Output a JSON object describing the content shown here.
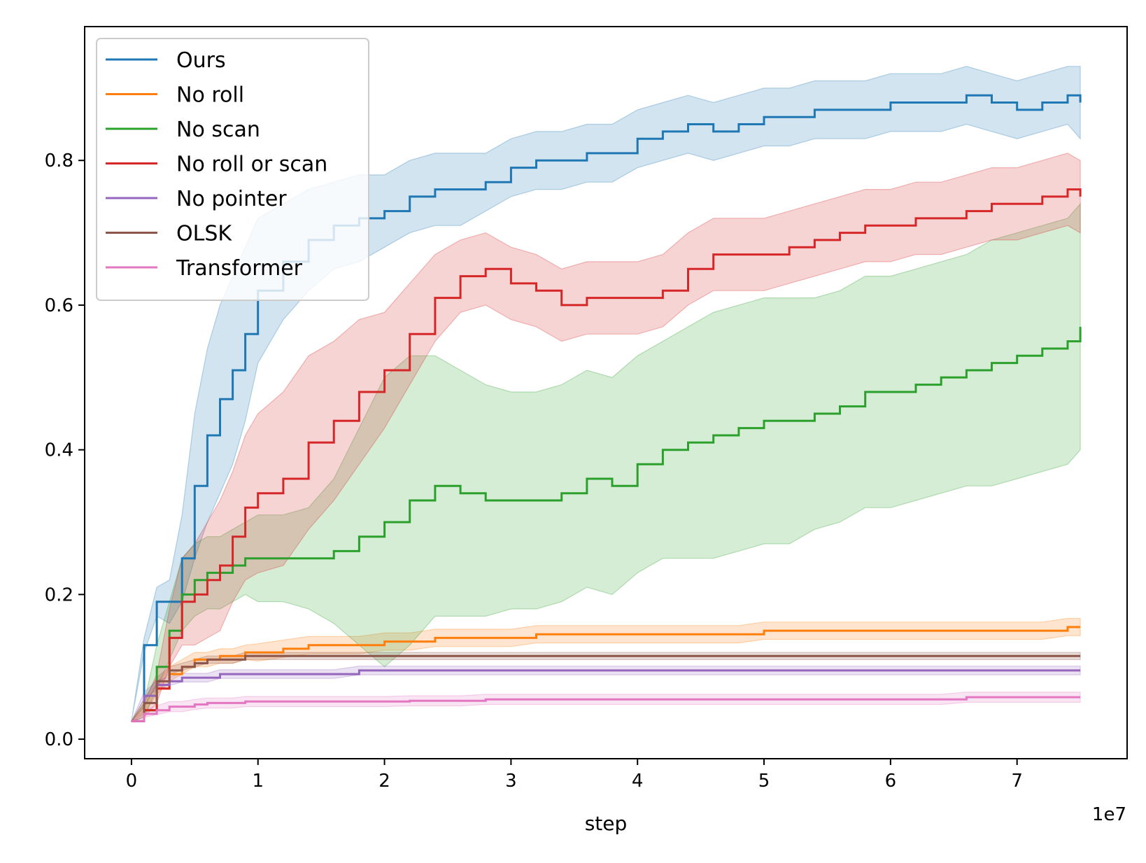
{
  "chart_data": {
    "type": "line",
    "title": "",
    "xlabel": "step",
    "ylabel": "",
    "x_offset_text": "1e7",
    "xlim": [
      -0.37,
      7.87
    ],
    "ylim": [
      -0.027,
      0.985
    ],
    "x_ticks": [
      0,
      1,
      2,
      3,
      4,
      5,
      6,
      7
    ],
    "x_tick_labels": [
      "0",
      "1",
      "2",
      "3",
      "4",
      "5",
      "6",
      "7"
    ],
    "y_ticks": [
      0.0,
      0.2,
      0.4,
      0.6,
      0.8
    ],
    "y_tick_labels": [
      "0.0",
      "0.2",
      "0.4",
      "0.6",
      "0.8"
    ],
    "grid": false,
    "legend_position": "top-left",
    "x": [
      0,
      0.1,
      0.2,
      0.3,
      0.4,
      0.5,
      0.6,
      0.7,
      0.8,
      0.9,
      1.0,
      1.2,
      1.4,
      1.6,
      1.8,
      2.0,
      2.2,
      2.4,
      2.6,
      2.8,
      3.0,
      3.2,
      3.4,
      3.6,
      3.8,
      4.0,
      4.2,
      4.4,
      4.6,
      4.8,
      5.0,
      5.2,
      5.4,
      5.6,
      5.8,
      6.0,
      6.2,
      6.4,
      6.6,
      6.8,
      7.0,
      7.2,
      7.4,
      7.5
    ],
    "series": [
      {
        "name": "Ours",
        "color": "#1f77b4",
        "values": [
          0.025,
          0.13,
          0.19,
          0.19,
          0.25,
          0.35,
          0.42,
          0.47,
          0.51,
          0.56,
          0.62,
          0.66,
          0.69,
          0.71,
          0.72,
          0.73,
          0.75,
          0.76,
          0.76,
          0.77,
          0.79,
          0.8,
          0.8,
          0.81,
          0.81,
          0.83,
          0.84,
          0.85,
          0.84,
          0.85,
          0.86,
          0.86,
          0.87,
          0.87,
          0.87,
          0.88,
          0.88,
          0.88,
          0.89,
          0.88,
          0.87,
          0.88,
          0.89,
          0.88
        ],
        "band_width": [
          0.0,
          0.01,
          0.02,
          0.03,
          0.06,
          0.1,
          0.12,
          0.13,
          0.13,
          0.12,
          0.1,
          0.08,
          0.07,
          0.06,
          0.06,
          0.05,
          0.05,
          0.05,
          0.05,
          0.04,
          0.04,
          0.04,
          0.04,
          0.04,
          0.04,
          0.04,
          0.04,
          0.04,
          0.04,
          0.04,
          0.04,
          0.04,
          0.04,
          0.04,
          0.04,
          0.04,
          0.04,
          0.04,
          0.04,
          0.04,
          0.04,
          0.04,
          0.04,
          0.05
        ]
      },
      {
        "name": "No roll",
        "color": "#ff7f0e",
        "values": [
          0.025,
          0.04,
          0.07,
          0.09,
          0.1,
          0.11,
          0.11,
          0.115,
          0.115,
          0.12,
          0.12,
          0.125,
          0.13,
          0.13,
          0.13,
          0.135,
          0.135,
          0.14,
          0.14,
          0.14,
          0.14,
          0.145,
          0.145,
          0.145,
          0.145,
          0.145,
          0.145,
          0.145,
          0.145,
          0.145,
          0.15,
          0.15,
          0.15,
          0.15,
          0.15,
          0.15,
          0.15,
          0.15,
          0.15,
          0.15,
          0.15,
          0.15,
          0.155,
          0.155
        ],
        "band_width": [
          0.0,
          0.005,
          0.008,
          0.01,
          0.01,
          0.01,
          0.01,
          0.01,
          0.01,
          0.01,
          0.012,
          0.012,
          0.012,
          0.012,
          0.012,
          0.012,
          0.012,
          0.012,
          0.012,
          0.012,
          0.012,
          0.012,
          0.012,
          0.012,
          0.012,
          0.012,
          0.012,
          0.012,
          0.012,
          0.012,
          0.012,
          0.012,
          0.012,
          0.012,
          0.012,
          0.012,
          0.012,
          0.012,
          0.012,
          0.012,
          0.012,
          0.012,
          0.012,
          0.012
        ]
      },
      {
        "name": "No scan",
        "color": "#2ca02c",
        "values": [
          0.025,
          0.04,
          0.1,
          0.15,
          0.2,
          0.22,
          0.23,
          0.23,
          0.24,
          0.25,
          0.25,
          0.25,
          0.25,
          0.26,
          0.28,
          0.3,
          0.33,
          0.35,
          0.34,
          0.33,
          0.33,
          0.33,
          0.34,
          0.36,
          0.35,
          0.38,
          0.4,
          0.41,
          0.42,
          0.43,
          0.44,
          0.44,
          0.45,
          0.46,
          0.48,
          0.48,
          0.49,
          0.5,
          0.51,
          0.52,
          0.53,
          0.54,
          0.55,
          0.57
        ],
        "band_width": [
          0.0,
          0.01,
          0.03,
          0.04,
          0.05,
          0.05,
          0.05,
          0.05,
          0.05,
          0.05,
          0.06,
          0.06,
          0.07,
          0.1,
          0.15,
          0.2,
          0.2,
          0.18,
          0.17,
          0.16,
          0.15,
          0.15,
          0.15,
          0.15,
          0.15,
          0.15,
          0.15,
          0.16,
          0.17,
          0.17,
          0.17,
          0.17,
          0.16,
          0.16,
          0.16,
          0.16,
          0.16,
          0.16,
          0.16,
          0.17,
          0.17,
          0.17,
          0.17,
          0.17
        ]
      },
      {
        "name": "No roll or scan",
        "color": "#d62728",
        "values": [
          0.025,
          0.04,
          0.07,
          0.14,
          0.19,
          0.2,
          0.22,
          0.24,
          0.28,
          0.32,
          0.34,
          0.36,
          0.41,
          0.44,
          0.48,
          0.51,
          0.56,
          0.61,
          0.64,
          0.65,
          0.63,
          0.62,
          0.6,
          0.61,
          0.61,
          0.61,
          0.62,
          0.65,
          0.67,
          0.67,
          0.67,
          0.68,
          0.69,
          0.7,
          0.71,
          0.71,
          0.72,
          0.72,
          0.73,
          0.74,
          0.74,
          0.75,
          0.76,
          0.75
        ],
        "band_width": [
          0.0,
          0.01,
          0.02,
          0.04,
          0.06,
          0.07,
          0.08,
          0.09,
          0.09,
          0.1,
          0.11,
          0.12,
          0.12,
          0.11,
          0.1,
          0.08,
          0.07,
          0.06,
          0.05,
          0.05,
          0.05,
          0.05,
          0.05,
          0.05,
          0.05,
          0.05,
          0.05,
          0.05,
          0.05,
          0.05,
          0.05,
          0.05,
          0.05,
          0.05,
          0.05,
          0.05,
          0.05,
          0.05,
          0.05,
          0.05,
          0.05,
          0.05,
          0.05,
          0.05
        ]
      },
      {
        "name": "No pointer",
        "color": "#9467bd",
        "values": [
          0.025,
          0.06,
          0.075,
          0.08,
          0.085,
          0.085,
          0.085,
          0.09,
          0.09,
          0.09,
          0.09,
          0.09,
          0.09,
          0.09,
          0.095,
          0.095,
          0.095,
          0.095,
          0.095,
          0.095,
          0.095,
          0.095,
          0.095,
          0.095,
          0.095,
          0.095,
          0.095,
          0.095,
          0.095,
          0.095,
          0.095,
          0.095,
          0.095,
          0.095,
          0.095,
          0.095,
          0.095,
          0.095,
          0.095,
          0.095,
          0.095,
          0.095,
          0.095,
          0.095
        ],
        "band_width": [
          0.0,
          0.005,
          0.006,
          0.006,
          0.006,
          0.006,
          0.006,
          0.006,
          0.006,
          0.006,
          0.006,
          0.006,
          0.006,
          0.006,
          0.006,
          0.006,
          0.006,
          0.006,
          0.006,
          0.006,
          0.006,
          0.006,
          0.006,
          0.006,
          0.006,
          0.006,
          0.006,
          0.006,
          0.006,
          0.006,
          0.006,
          0.006,
          0.006,
          0.006,
          0.006,
          0.006,
          0.006,
          0.006,
          0.006,
          0.006,
          0.006,
          0.006,
          0.006,
          0.006
        ]
      },
      {
        "name": "OLSK",
        "color": "#8c564b",
        "values": [
          0.025,
          0.05,
          0.08,
          0.095,
          0.1,
          0.105,
          0.11,
          0.11,
          0.11,
          0.115,
          0.115,
          0.115,
          0.115,
          0.115,
          0.115,
          0.115,
          0.115,
          0.115,
          0.115,
          0.115,
          0.115,
          0.115,
          0.115,
          0.115,
          0.115,
          0.115,
          0.115,
          0.115,
          0.115,
          0.115,
          0.115,
          0.115,
          0.115,
          0.115,
          0.115,
          0.115,
          0.115,
          0.115,
          0.115,
          0.115,
          0.115,
          0.115,
          0.115,
          0.115
        ],
        "band_width": [
          0.0,
          0.005,
          0.005,
          0.005,
          0.005,
          0.005,
          0.005,
          0.005,
          0.005,
          0.005,
          0.005,
          0.005,
          0.005,
          0.005,
          0.005,
          0.005,
          0.005,
          0.005,
          0.005,
          0.005,
          0.005,
          0.005,
          0.005,
          0.005,
          0.005,
          0.005,
          0.005,
          0.005,
          0.005,
          0.005,
          0.005,
          0.005,
          0.005,
          0.005,
          0.005,
          0.005,
          0.005,
          0.005,
          0.005,
          0.005,
          0.005,
          0.005,
          0.005,
          0.005
        ]
      },
      {
        "name": "Transformer",
        "color": "#e377c2",
        "values": [
          0.025,
          0.035,
          0.04,
          0.045,
          0.045,
          0.048,
          0.05,
          0.05,
          0.05,
          0.052,
          0.052,
          0.052,
          0.052,
          0.052,
          0.052,
          0.052,
          0.053,
          0.053,
          0.053,
          0.055,
          0.055,
          0.055,
          0.055,
          0.055,
          0.055,
          0.055,
          0.055,
          0.055,
          0.055,
          0.055,
          0.055,
          0.055,
          0.055,
          0.055,
          0.055,
          0.055,
          0.055,
          0.055,
          0.058,
          0.058,
          0.058,
          0.058,
          0.058,
          0.058
        ],
        "band_width": [
          0.0,
          0.005,
          0.006,
          0.007,
          0.007,
          0.007,
          0.007,
          0.007,
          0.007,
          0.007,
          0.007,
          0.007,
          0.007,
          0.007,
          0.007,
          0.007,
          0.007,
          0.007,
          0.007,
          0.007,
          0.007,
          0.007,
          0.007,
          0.007,
          0.007,
          0.007,
          0.007,
          0.007,
          0.007,
          0.007,
          0.007,
          0.007,
          0.007,
          0.007,
          0.007,
          0.007,
          0.007,
          0.007,
          0.007,
          0.007,
          0.007,
          0.007,
          0.007,
          0.007
        ]
      }
    ]
  }
}
